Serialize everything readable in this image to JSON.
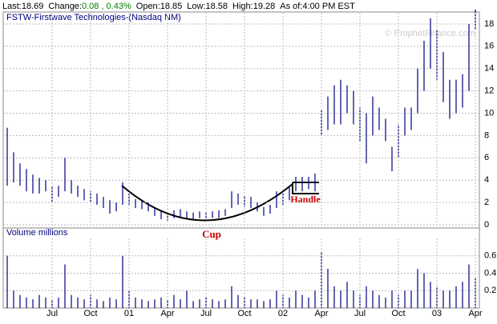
{
  "header": {
    "items": [
      {
        "label": "Last:",
        "value": "18.69"
      },
      {
        "label": "Change:",
        "value": "0.08 , 0.43%"
      },
      {
        "label": "Open:",
        "value": "18.85"
      },
      {
        "label": "Low:",
        "value": "18.58"
      },
      {
        "label": "High:",
        "value": "19.28"
      },
      {
        "label": "As of:",
        "value": "4:00 PM EST"
      }
    ]
  },
  "chart_data": [
    {
      "type": "range",
      "title": "FSTW-Firstwave Technologies-(Nasdaq NM)",
      "watermark": "© ProphetFinance.com",
      "annotations": [
        "Cup",
        "Handle"
      ],
      "color": "#000080",
      "low": [
        3.5,
        3.8,
        3.5,
        3,
        2.8,
        2.8,
        3,
        2,
        2.5,
        3,
        2.8,
        2.5,
        2.2,
        2,
        1.8,
        1.5,
        1,
        1.2,
        1.8,
        1.8,
        1.5,
        1.4,
        1.2,
        0.8,
        0.5,
        0.4,
        0.6,
        0.7,
        0.6,
        0.5,
        0.6,
        0.5,
        0.6,
        0.6,
        0.8,
        1.5,
        1.8,
        1.6,
        1.5,
        1.2,
        0.8,
        1,
        1.5,
        1.8,
        2.2,
        3,
        3,
        3.2,
        3,
        8,
        8.5,
        9,
        9,
        10,
        9,
        7.5,
        5.5,
        8,
        8.5,
        7.5,
        4.8,
        6,
        8,
        8.5,
        10,
        12,
        14,
        13,
        11,
        9.5,
        10,
        10.5,
        12,
        17.5
      ],
      "high": [
        8.7,
        6.5,
        5.5,
        5,
        4.5,
        4.2,
        4,
        3.5,
        3.5,
        6,
        4,
        3.5,
        3.2,
        3,
        2.8,
        2.5,
        2.2,
        2,
        3.8,
        2.8,
        2.3,
        2.2,
        2,
        1.5,
        1.2,
        1,
        1.3,
        1.4,
        1.2,
        1.1,
        1.2,
        1.1,
        1.2,
        1.3,
        1.4,
        3,
        2.8,
        2.6,
        2.5,
        2,
        1.6,
        1.8,
        3,
        3,
        3.5,
        4.3,
        4.3,
        4.3,
        4.6,
        10.3,
        11.5,
        12.5,
        13,
        12.5,
        12,
        10.5,
        10,
        11.5,
        10.5,
        9.5,
        7,
        9,
        10.5,
        10.5,
        14,
        16.5,
        18.5,
        17.5,
        15.5,
        13,
        13,
        13.5,
        18,
        19.3
      ],
      "ylim": [
        0,
        19
      ],
      "yticks": [
        0,
        2,
        4,
        6,
        8,
        10,
        12,
        14,
        16,
        18
      ],
      "grid": true
    },
    {
      "type": "volume",
      "title": "Volume  millions",
      "color": "#000080",
      "categories": [
        null,
        null,
        null,
        null,
        null,
        null,
        null,
        "Jul",
        null,
        null,
        null,
        null,
        null,
        "Oct",
        null,
        null,
        null,
        null,
        null,
        "01",
        null,
        null,
        null,
        null,
        null,
        "Apr",
        null,
        null,
        null,
        null,
        null,
        "Jul",
        null,
        null,
        null,
        null,
        null,
        "Oct",
        null,
        null,
        null,
        null,
        null,
        "02",
        null,
        null,
        null,
        null,
        null,
        "Apr",
        null,
        null,
        null,
        null,
        null,
        "Jul",
        null,
        null,
        null,
        null,
        null,
        "Oct",
        null,
        null,
        null,
        null,
        null,
        "03",
        null,
        null,
        null,
        null,
        null,
        "Apr"
      ],
      "values": [
        0.6,
        0.2,
        0.15,
        0.12,
        0.1,
        0.15,
        0.12,
        0.1,
        0.12,
        0.5,
        0.15,
        0.12,
        0.1,
        0.15,
        0.1,
        0.08,
        0.12,
        0.1,
        0.6,
        0.2,
        0.12,
        0.1,
        0.08,
        0.1,
        0.12,
        0.1,
        0.15,
        0.1,
        0.2,
        0.08,
        0.1,
        0.12,
        0.1,
        0.08,
        0.1,
        0.25,
        0.15,
        0.12,
        0.1,
        0.1,
        0.08,
        0.1,
        0.2,
        0.15,
        0.12,
        0.2,
        0.15,
        0.12,
        0.2,
        0.65,
        0.45,
        0.25,
        0.2,
        0.3,
        0.2,
        0.15,
        0.25,
        0.2,
        0.15,
        0.12,
        0.2,
        0.15,
        0.2,
        0.2,
        0.45,
        0.4,
        0.3,
        0.25,
        0.2,
        0.2,
        0.25,
        0.3,
        0.5,
        0.35
      ],
      "ylim": [
        0,
        0.8
      ],
      "yticks": [
        0.2,
        0.4,
        0.6
      ],
      "grid": true
    }
  ]
}
